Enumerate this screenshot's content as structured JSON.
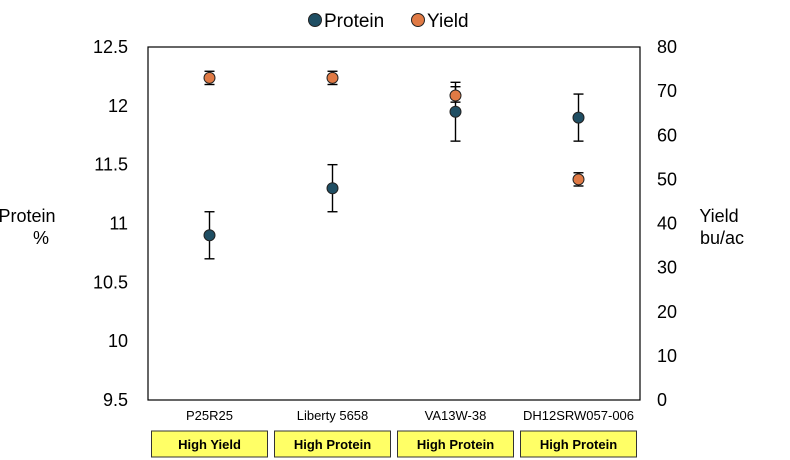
{
  "chart_data": {
    "type": "scatter",
    "categories": [
      "P25R25",
      "Liberty 5658",
      "VA13W-38",
      "DH12SRW057-006"
    ],
    "category_tags": [
      "High Yield",
      "High Protein",
      "High Protein",
      "High Protein"
    ],
    "series": [
      {
        "name": "Protein",
        "axis": "left",
        "color": "#1f4e63",
        "values": [
          10.9,
          11.3,
          11.95,
          11.9
        ],
        "error_low": [
          10.7,
          11.1,
          11.7,
          11.7
        ],
        "error_high": [
          11.1,
          11.5,
          12.2,
          12.1
        ]
      },
      {
        "name": "Yield",
        "axis": "right",
        "color": "#e07a45",
        "values": [
          73,
          73,
          69,
          50
        ],
        "error_low": [
          71.5,
          71.5,
          67.5,
          48.5
        ],
        "error_high": [
          74.5,
          74.5,
          71,
          51.5
        ]
      }
    ],
    "y_left": {
      "label_lines": [
        "Protein",
        "%"
      ],
      "range": [
        9.5,
        12.5
      ],
      "ticks": [
        "9.5",
        "10",
        "10.5",
        "11",
        "11.5",
        "12",
        "12.5"
      ]
    },
    "y_right": {
      "label_lines": [
        "Yield",
        "bu/ac"
      ],
      "range": [
        0,
        80
      ],
      "ticks": [
        "0",
        "10",
        "20",
        "30",
        "40",
        "50",
        "60",
        "70",
        "80"
      ]
    },
    "legend_position": "top-center",
    "grid": false,
    "tag_color": "#ffff66"
  }
}
